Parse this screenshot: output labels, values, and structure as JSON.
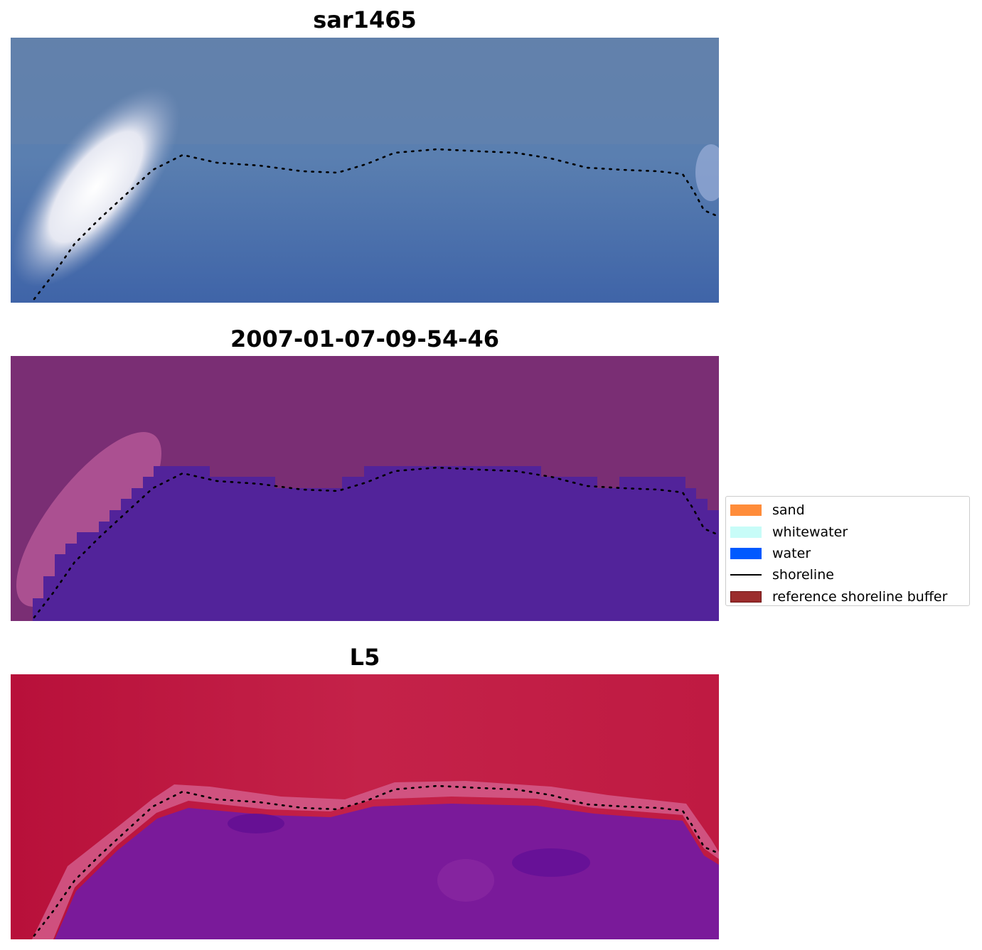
{
  "panels": [
    {
      "title": "sar1465",
      "image": "rgb-satellite-image"
    },
    {
      "title": "2007-01-07-09-54-46",
      "image": "classified-image"
    },
    {
      "title": "L5",
      "image": "false-color-index-image"
    }
  ],
  "legend": {
    "items": [
      {
        "label": "sand",
        "color": "#ff8c3a",
        "kind": "patch"
      },
      {
        "label": "whitewater",
        "color": "#c8fcf8",
        "kind": "patch"
      },
      {
        "label": "water",
        "color": "#0059ff",
        "kind": "patch"
      },
      {
        "label": "shoreline",
        "color": "#000000",
        "kind": "line"
      },
      {
        "label": "reference shoreline buffer",
        "color": "#9b2d2d",
        "kind": "patch"
      }
    ]
  },
  "colors": {
    "sar_background": "#5a7cab",
    "sar_whitewater": "#f2eef4",
    "class_land": "#7a2e74",
    "class_water": "#52239a",
    "l5_land": "#c01c44",
    "l5_water": "#7a1a9a",
    "shoreline_dots": "#000000"
  }
}
